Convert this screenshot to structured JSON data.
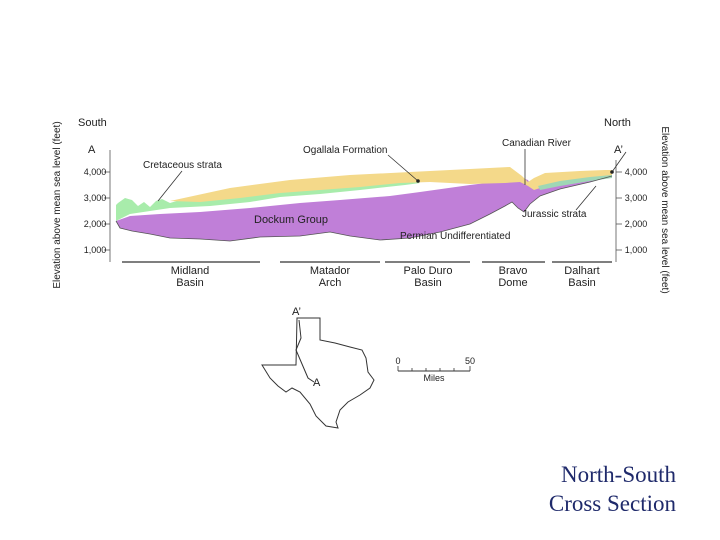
{
  "diagram": {
    "south_label": "South",
    "north_label": "North",
    "start_marker": "A",
    "end_marker": "A’",
    "left_axis_title": "Elevation above mean sea level (feet)",
    "right_axis_title": "Elevation above mean sea level (feet)",
    "left_ticks": [
      "4,000",
      "3,000",
      "2,000",
      "1,000"
    ],
    "right_ticks": [
      "4,000",
      "3,000",
      "2,000",
      "1,000"
    ],
    "strata_labels": {
      "cretaceous": "Cretaceous strata",
      "ogallala": "Ogallala Formation",
      "canadian_river": "Canadian River",
      "dockum": "Dockum Group",
      "jurassic": "Jurassic strata",
      "permian": "Permian Undifferentiated"
    },
    "regions": [
      {
        "line1": "Midland",
        "line2": "Basin"
      },
      {
        "line1": "Matador",
        "line2": "Arch"
      },
      {
        "line1": "Palo Duro",
        "line2": "Basin"
      },
      {
        "line1": "Bravo",
        "line2": "Dome"
      },
      {
        "line1": "Dalhart",
        "line2": "Basin"
      }
    ],
    "colors": {
      "cretaceous": "#a8ecab",
      "ogallala": "#f4d98a",
      "dockum": "#c07fd8",
      "jurassic": "#9fd7b5"
    }
  },
  "map_inset": {
    "label_top": "A’",
    "label_bottom": "A",
    "scale_start": "0",
    "scale_end": "50",
    "scale_unit": "Miles"
  },
  "slide": {
    "title_line1": "North-South",
    "title_line2": "Cross Section"
  }
}
